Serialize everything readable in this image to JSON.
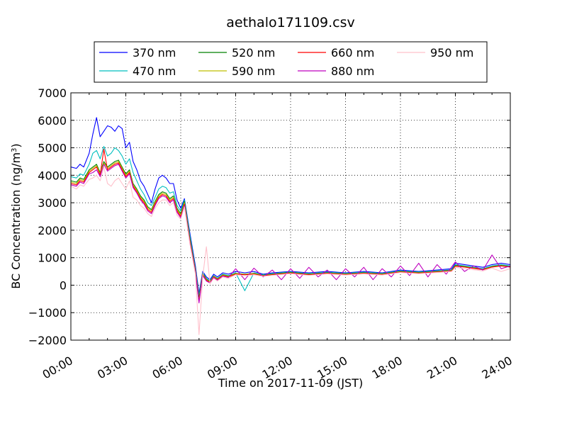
{
  "chart_data": {
    "type": "line",
    "title": "aethalo171109.csv",
    "xlabel": "Time on 2017-11-09 (JST)",
    "ylabel": "BC Concentration (ng/m",
    "ylabel_sup": "3",
    "ylabel_end": ")",
    "x_unit": "hours",
    "xlim": [
      0,
      24
    ],
    "ylim": [
      -2000,
      7000
    ],
    "grid": true,
    "legend_position": "top",
    "x_ticks": [
      {
        "value": 0,
        "label": "00:00"
      },
      {
        "value": 3,
        "label": "03:00"
      },
      {
        "value": 6,
        "label": "06:00"
      },
      {
        "value": 9,
        "label": "09:00"
      },
      {
        "value": 12,
        "label": "12:00"
      },
      {
        "value": 15,
        "label": "15:00"
      },
      {
        "value": 18,
        "label": "18:00"
      },
      {
        "value": 21,
        "label": "21:00"
      },
      {
        "value": 24,
        "label": "24:00"
      }
    ],
    "y_ticks": [
      {
        "value": 7000,
        "label": "7000"
      },
      {
        "value": 6000,
        "label": "6000"
      },
      {
        "value": 5000,
        "label": "5000"
      },
      {
        "value": 4000,
        "label": "4000"
      },
      {
        "value": 3000,
        "label": "3000"
      },
      {
        "value": 2000,
        "label": "2000"
      },
      {
        "value": 1000,
        "label": "1000"
      },
      {
        "value": 0,
        "label": "0"
      },
      {
        "value": -1000,
        "label": "−1000"
      },
      {
        "value": -2000,
        "label": "−2000"
      }
    ],
    "series": [
      {
        "name": "370 nm",
        "color": "#0000ff",
        "x": [
          0,
          0.3,
          0.5,
          0.7,
          1.0,
          1.2,
          1.4,
          1.6,
          1.8,
          2.0,
          2.2,
          2.4,
          2.6,
          2.8,
          3.0,
          3.2,
          3.4,
          3.6,
          3.8,
          4.0,
          4.2,
          4.4,
          4.6,
          4.8,
          5.0,
          5.2,
          5.4,
          5.6,
          5.8,
          6.0,
          6.2,
          6.5,
          6.8,
          7.0,
          7.2,
          7.4,
          7.6,
          7.8,
          8.0,
          8.3,
          8.6,
          9.0,
          9.5,
          10.0,
          10.5,
          11.0,
          12.0,
          13.0,
          14.0,
          15.0,
          16.0,
          17.0,
          18.0,
          19.0,
          20.0,
          20.8,
          21.0,
          21.5,
          22.0,
          22.5,
          23.0,
          23.5,
          24.0
        ],
        "y": [
          4300,
          4250,
          4400,
          4300,
          4800,
          5500,
          6100,
          5400,
          5600,
          5800,
          5750,
          5600,
          5800,
          5700,
          5000,
          5200,
          4500,
          4200,
          3800,
          3600,
          3300,
          3000,
          3500,
          3900,
          4000,
          3900,
          3700,
          3700,
          3100,
          2800,
          3150,
          1900,
          700,
          -300,
          500,
          300,
          200,
          400,
          300,
          450,
          400,
          500,
          450,
          500,
          400,
          450,
          500,
          450,
          500,
          450,
          500,
          450,
          550,
          500,
          550,
          600,
          800,
          750,
          700,
          650,
          750,
          800,
          750
        ]
      },
      {
        "name": "470 nm",
        "color": "#00bfbf",
        "x": [
          0,
          0.3,
          0.5,
          0.7,
          1.0,
          1.2,
          1.4,
          1.6,
          1.8,
          2.0,
          2.2,
          2.4,
          2.6,
          2.8,
          3.0,
          3.2,
          3.4,
          3.6,
          3.8,
          4.0,
          4.2,
          4.4,
          4.6,
          4.8,
          5.0,
          5.2,
          5.4,
          5.6,
          5.8,
          6.0,
          6.2,
          6.5,
          6.8,
          7.0,
          7.2,
          7.4,
          7.6,
          7.8,
          8.0,
          8.3,
          8.6,
          9.0,
          9.5,
          10.0,
          10.5,
          11.0,
          12.0,
          13.0,
          14.0,
          15.0,
          16.0,
          17.0,
          18.0,
          19.0,
          20.0,
          20.8,
          21.0,
          21.5,
          22.0,
          22.5,
          23.0,
          23.5,
          24.0
        ],
        "y": [
          3950,
          3900,
          4050,
          4000,
          4400,
          4800,
          4900,
          4600,
          5050,
          4700,
          4800,
          5000,
          4900,
          4700,
          4400,
          4600,
          4100,
          3800,
          3500,
          3300,
          3000,
          2900,
          3200,
          3500,
          3600,
          3550,
          3350,
          3400,
          2900,
          2700,
          3100,
          1800,
          600,
          -400,
          450,
          250,
          150,
          350,
          250,
          400,
          350,
          450,
          -200,
          450,
          380,
          420,
          480,
          420,
          470,
          430,
          470,
          430,
          520,
          480,
          520,
          560,
          750,
          700,
          650,
          600,
          700,
          750,
          700
        ]
      },
      {
        "name": "520 nm",
        "color": "#008000",
        "x": [
          0,
          0.3,
          0.5,
          0.7,
          1.0,
          1.2,
          1.4,
          1.6,
          1.8,
          2.0,
          2.2,
          2.4,
          2.6,
          2.8,
          3.0,
          3.2,
          3.4,
          3.6,
          3.8,
          4.0,
          4.2,
          4.4,
          4.6,
          4.8,
          5.0,
          5.2,
          5.4,
          5.6,
          5.8,
          6.0,
          6.2,
          6.5,
          6.8,
          7.0,
          7.2,
          7.4,
          7.6,
          7.8,
          8.0,
          8.3,
          8.6,
          9.0,
          9.5,
          10.0,
          10.5,
          11.0,
          12.0,
          13.0,
          14.0,
          15.0,
          16.0,
          17.0,
          18.0,
          19.0,
          20.0,
          20.8,
          21.0,
          21.5,
          22.0,
          22.5,
          23.0,
          23.5,
          24.0
        ],
        "y": [
          3800,
          3750,
          3900,
          3850,
          4200,
          4300,
          4400,
          4100,
          4500,
          4300,
          4400,
          4500,
          4550,
          4300,
          4050,
          4200,
          3700,
          3500,
          3250,
          3100,
          2850,
          2750,
          3050,
          3300,
          3400,
          3350,
          3150,
          3250,
          2800,
          2600,
          3050,
          1700,
          550,
          -500,
          420,
          220,
          130,
          330,
          230,
          380,
          330,
          430,
          400,
          430,
          360,
          400,
          460,
          400,
          450,
          410,
          450,
          410,
          500,
          460,
          500,
          540,
          720,
          680,
          630,
          580,
          680,
          720,
          680
        ]
      },
      {
        "name": "590 nm",
        "color": "#bfbf00",
        "x": [
          0,
          0.3,
          0.5,
          0.7,
          1.0,
          1.2,
          1.4,
          1.6,
          1.8,
          2.0,
          2.2,
          2.4,
          2.6,
          2.8,
          3.0,
          3.2,
          3.4,
          3.6,
          3.8,
          4.0,
          4.2,
          4.4,
          4.6,
          4.8,
          5.0,
          5.2,
          5.4,
          5.6,
          5.8,
          6.0,
          6.2,
          6.5,
          6.8,
          7.0,
          7.2,
          7.4,
          7.6,
          7.8,
          8.0,
          8.3,
          8.6,
          9.0,
          9.5,
          10.0,
          10.5,
          11.0,
          12.0,
          13.0,
          14.0,
          15.0,
          16.0,
          17.0,
          18.0,
          19.0,
          20.0,
          20.8,
          21.0,
          21.5,
          22.0,
          22.5,
          23.0,
          23.5,
          24.0
        ],
        "y": [
          3750,
          3700,
          3850,
          3800,
          4150,
          4250,
          4350,
          4050,
          4450,
          4250,
          4350,
          4450,
          4500,
          4250,
          4000,
          4150,
          3650,
          3450,
          3200,
          3050,
          2800,
          2700,
          3000,
          3250,
          3350,
          3300,
          3100,
          3200,
          2750,
          2550,
          3000,
          1650,
          520,
          -550,
          400,
          200,
          120,
          320,
          220,
          370,
          320,
          420,
          390,
          420,
          350,
          390,
          450,
          390,
          440,
          400,
          440,
          400,
          490,
          450,
          490,
          530,
          700,
          670,
          620,
          570,
          670,
          710,
          670
        ]
      },
      {
        "name": "660 nm",
        "color": "#ff0000",
        "x": [
          0,
          0.3,
          0.5,
          0.7,
          1.0,
          1.2,
          1.4,
          1.6,
          1.8,
          2.0,
          2.2,
          2.4,
          2.6,
          2.8,
          3.0,
          3.2,
          3.4,
          3.6,
          3.8,
          4.0,
          4.2,
          4.4,
          4.6,
          4.8,
          5.0,
          5.2,
          5.4,
          5.6,
          5.8,
          6.0,
          6.2,
          6.5,
          6.8,
          7.0,
          7.2,
          7.4,
          7.6,
          7.8,
          8.0,
          8.3,
          8.6,
          9.0,
          9.5,
          10.0,
          10.5,
          11.0,
          12.0,
          13.0,
          14.0,
          15.0,
          16.0,
          17.0,
          18.0,
          19.0,
          20.0,
          20.8,
          21.0,
          21.5,
          22.0,
          22.5,
          23.0,
          23.5,
          24.0
        ],
        "y": [
          3700,
          3650,
          3800,
          3750,
          4100,
          4200,
          4300,
          4000,
          4950,
          4200,
          4300,
          4400,
          4450,
          4200,
          3950,
          4100,
          3600,
          3400,
          3150,
          3000,
          2750,
          2650,
          2950,
          3200,
          3300,
          3250,
          3050,
          3150,
          2700,
          2500,
          2950,
          1600,
          500,
          -600,
          380,
          180,
          100,
          300,
          200,
          350,
          300,
          400,
          380,
          400,
          340,
          380,
          440,
          380,
          430,
          390,
          430,
          390,
          480,
          440,
          480,
          520,
          690,
          660,
          610,
          560,
          660,
          700,
          660
        ]
      },
      {
        "name": "880 nm",
        "color": "#bf00bf",
        "x": [
          0,
          0.3,
          0.5,
          0.7,
          1.0,
          1.2,
          1.4,
          1.6,
          1.8,
          2.0,
          2.2,
          2.4,
          2.6,
          2.8,
          3.0,
          3.2,
          3.4,
          3.6,
          3.8,
          4.0,
          4.2,
          4.4,
          4.6,
          4.8,
          5.0,
          5.2,
          5.4,
          5.6,
          5.8,
          6.0,
          6.2,
          6.5,
          6.8,
          7.0,
          7.2,
          7.4,
          7.6,
          7.8,
          8.0,
          8.3,
          8.6,
          9.0,
          9.5,
          10.0,
          10.5,
          11.0,
          11.5,
          12.0,
          12.5,
          13.0,
          13.5,
          14.0,
          14.5,
          15.0,
          15.5,
          16.0,
          16.5,
          17.0,
          17.5,
          18.0,
          18.5,
          19.0,
          19.5,
          20.0,
          20.5,
          21.0,
          21.5,
          22.0,
          22.5,
          23.0,
          23.5,
          24.0
        ],
        "y": [
          3650,
          3600,
          3750,
          3700,
          4050,
          4100,
          4200,
          3950,
          4400,
          4150,
          4250,
          4350,
          4400,
          4150,
          3900,
          4050,
          3550,
          3350,
          3100,
          2950,
          2700,
          2600,
          2900,
          3150,
          3250,
          3200,
          3000,
          3100,
          2650,
          2450,
          2900,
          1550,
          450,
          -650,
          350,
          150,
          80,
          280,
          180,
          330,
          280,
          600,
          200,
          620,
          300,
          550,
          200,
          600,
          250,
          650,
          300,
          550,
          200,
          600,
          300,
          650,
          200,
          600,
          300,
          700,
          350,
          800,
          300,
          750,
          400,
          850,
          500,
          700,
          550,
          1100,
          600,
          700
        ]
      },
      {
        "name": "950 nm",
        "color": "#ffc0cb",
        "x": [
          0,
          0.3,
          0.5,
          0.7,
          1.0,
          1.2,
          1.4,
          1.6,
          1.8,
          2.0,
          2.2,
          2.4,
          2.6,
          2.8,
          3.0,
          3.2,
          3.4,
          3.6,
          3.8,
          4.0,
          4.2,
          4.4,
          4.6,
          4.8,
          5.0,
          5.2,
          5.4,
          5.6,
          5.8,
          6.0,
          6.2,
          6.5,
          6.8,
          7.0,
          7.2,
          7.4,
          7.6,
          7.8,
          8.0,
          8.3,
          8.6,
          9.0,
          9.5,
          10.0,
          10.5,
          11.0,
          12.0,
          13.0,
          14.0,
          15.0,
          16.0,
          17.0,
          18.0,
          19.0,
          20.0,
          20.8,
          21.0,
          21.5,
          22.0,
          22.5,
          23.0,
          23.5,
          24.0
        ],
        "y": [
          3600,
          3500,
          3650,
          3600,
          3850,
          3900,
          4000,
          3800,
          4300,
          3700,
          3600,
          3800,
          3900,
          3700,
          3500,
          3800,
          3200,
          3100,
          2900,
          2800,
          2600,
          2500,
          2800,
          3000,
          3100,
          3100,
          2900,
          3000,
          2550,
          2400,
          2850,
          1500,
          400,
          -1800,
          300,
          1400,
          50,
          250,
          150,
          300,
          250,
          380,
          350,
          380,
          320,
          360,
          420,
          360,
          410,
          370,
          410,
          370,
          460,
          420,
          460,
          500,
          650,
          600,
          560,
          520,
          620,
          500,
          600
        ]
      }
    ]
  }
}
